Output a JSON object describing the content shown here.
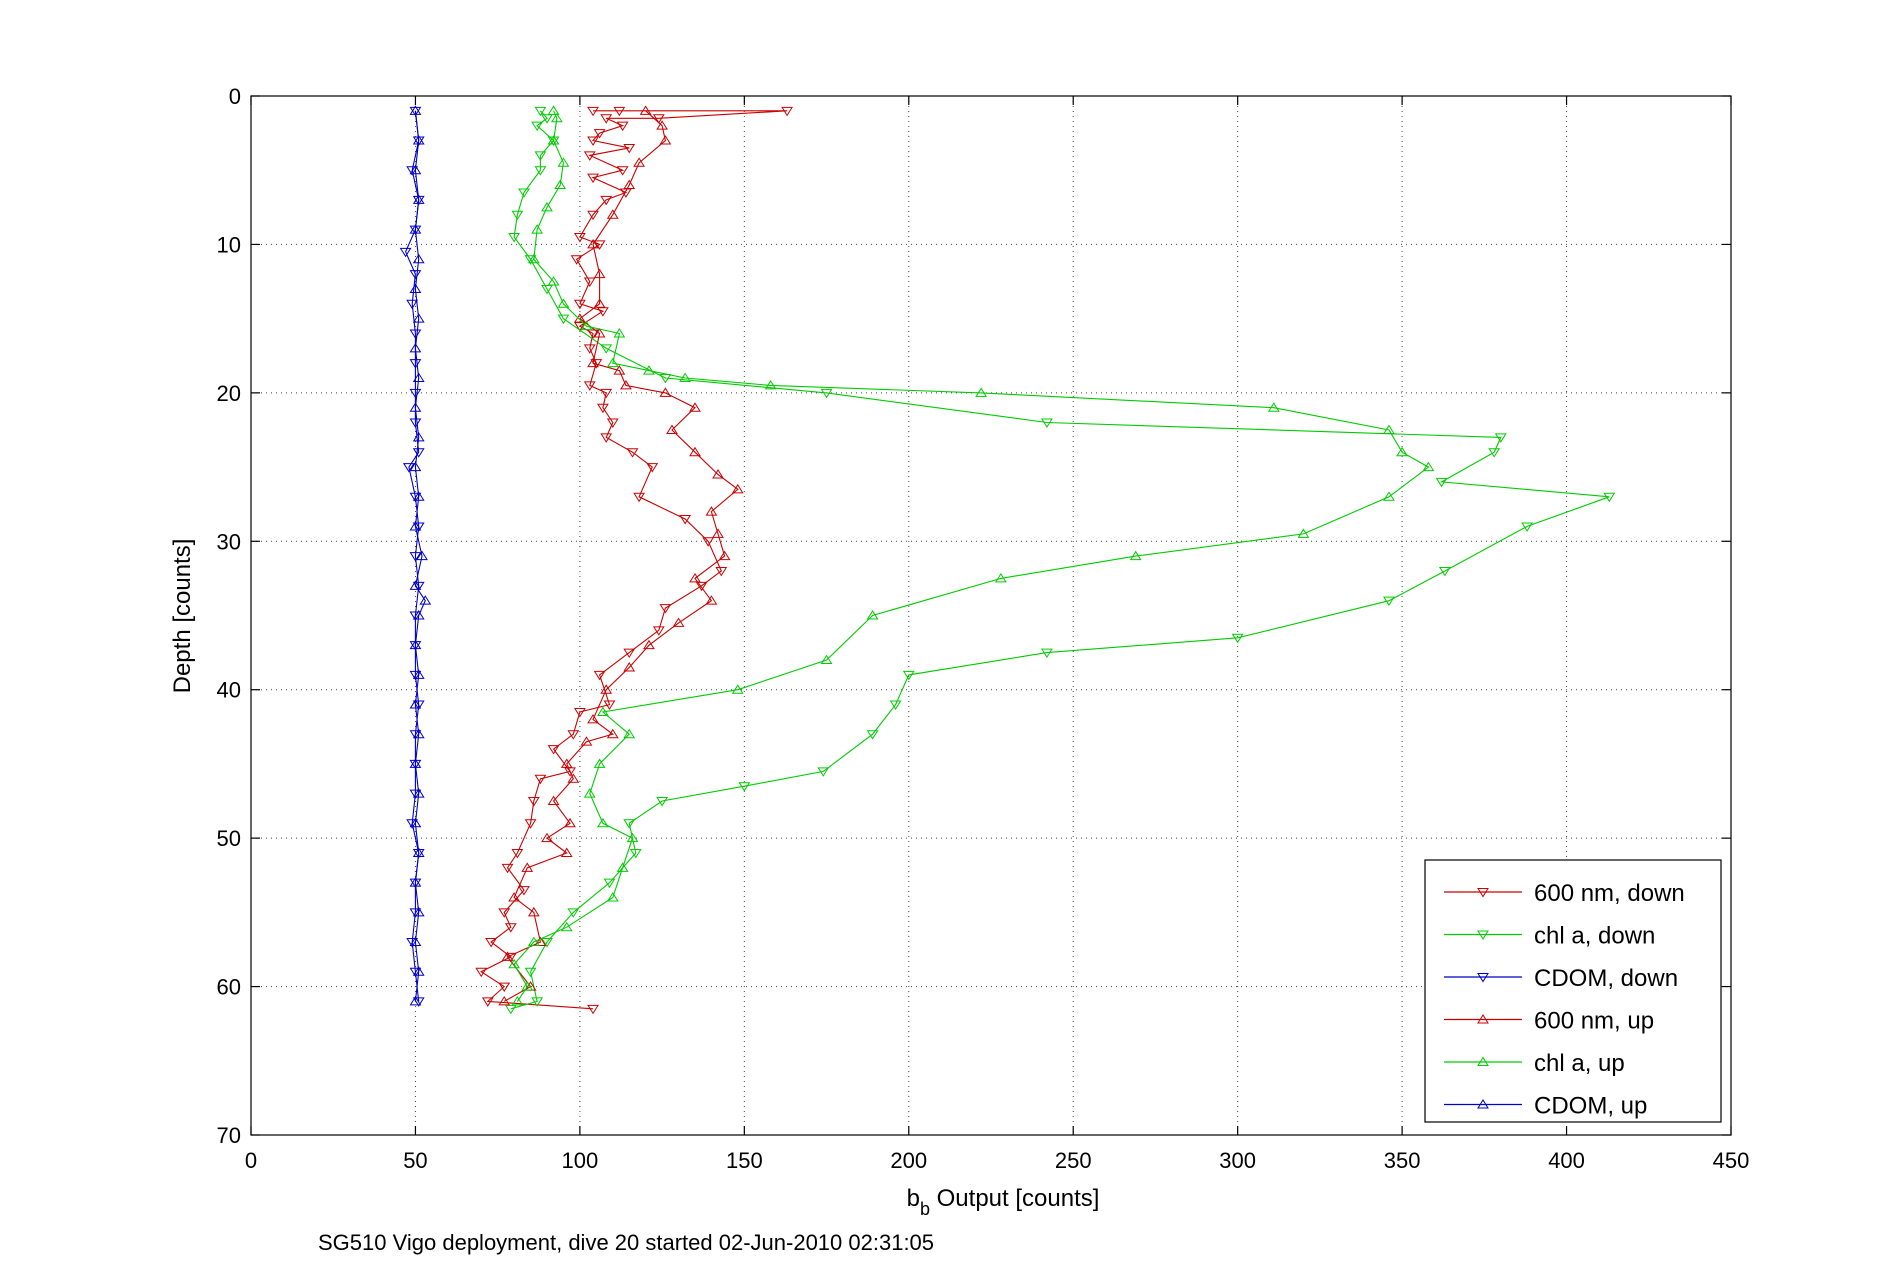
{
  "chart_data": {
    "type": "line",
    "xlabel_base": "b",
    "xlabel_sub": "b",
    "xlabel_rest": " Output [counts]",
    "ylabel": "Depth [counts]",
    "caption": "SG510 Vigo deployment, dive 20 started 02-Jun-2010 02:31:05",
    "xlim": [
      0,
      450
    ],
    "ylim": [
      0,
      70
    ],
    "y_reversed": true,
    "grid": true,
    "legend_position": "bottom-right",
    "xticks": [
      0,
      50,
      100,
      150,
      200,
      250,
      300,
      350,
      400,
      450
    ],
    "yticks": [
      0,
      10,
      20,
      30,
      40,
      50,
      60,
      70
    ],
    "series": [
      {
        "name": "600 nm, down",
        "color": "#cc0000",
        "marker": "triangle-down",
        "points": [
          [
            104,
            1
          ],
          [
            112,
            1
          ],
          [
            163,
            1
          ],
          [
            124,
            1.5
          ],
          [
            108,
            1.5
          ],
          [
            113,
            2
          ],
          [
            106,
            2.5
          ],
          [
            104,
            3
          ],
          [
            115,
            3.5
          ],
          [
            103,
            4
          ],
          [
            113,
            5
          ],
          [
            104,
            5.5
          ],
          [
            114,
            6.5
          ],
          [
            108,
            7
          ],
          [
            104,
            8
          ],
          [
            100,
            9.5
          ],
          [
            106,
            10
          ],
          [
            99,
            11
          ],
          [
            103,
            12.5
          ],
          [
            100,
            14
          ],
          [
            107,
            14.5
          ],
          [
            100,
            15.5
          ],
          [
            104,
            16
          ],
          [
            103,
            17
          ],
          [
            105,
            18
          ],
          [
            103,
            19.5
          ],
          [
            108,
            20
          ],
          [
            107,
            21
          ],
          [
            110,
            22
          ],
          [
            108,
            23
          ],
          [
            116,
            24
          ],
          [
            122,
            25
          ],
          [
            118,
            27
          ],
          [
            132,
            28.5
          ],
          [
            139,
            30
          ],
          [
            143,
            32
          ],
          [
            137,
            33
          ],
          [
            126,
            34.5
          ],
          [
            124,
            36
          ],
          [
            115,
            37.5
          ],
          [
            106,
            39
          ],
          [
            109,
            41
          ],
          [
            100,
            41.5
          ],
          [
            98,
            43
          ],
          [
            92,
            44
          ],
          [
            97,
            45.5
          ],
          [
            88,
            46
          ],
          [
            86,
            47.5
          ],
          [
            85,
            49
          ],
          [
            81,
            51
          ],
          [
            78,
            52
          ],
          [
            83,
            53.5
          ],
          [
            77,
            55
          ],
          [
            79,
            56
          ],
          [
            73,
            57
          ],
          [
            79,
            58
          ],
          [
            70,
            59
          ],
          [
            77,
            60
          ],
          [
            72,
            61
          ],
          [
            104,
            61.5
          ]
        ]
      },
      {
        "name": "chl a, down",
        "color": "#00cc00",
        "marker": "triangle-down",
        "points": [
          [
            88,
            1
          ],
          [
            90,
            1.5
          ],
          [
            87,
            2
          ],
          [
            92,
            3
          ],
          [
            88,
            4
          ],
          [
            88,
            5
          ],
          [
            83,
            6.5
          ],
          [
            81,
            8
          ],
          [
            80,
            9.5
          ],
          [
            85,
            11
          ],
          [
            90,
            13
          ],
          [
            95,
            15
          ],
          [
            108,
            17
          ],
          [
            126,
            19
          ],
          [
            175,
            20
          ],
          [
            242,
            22
          ],
          [
            380,
            23
          ],
          [
            378,
            24
          ],
          [
            362,
            26
          ],
          [
            413,
            27
          ],
          [
            388,
            29
          ],
          [
            363,
            32
          ],
          [
            346,
            34
          ],
          [
            300,
            36.5
          ],
          [
            242,
            37.5
          ],
          [
            200,
            39
          ],
          [
            196,
            41
          ],
          [
            189,
            43
          ],
          [
            174,
            45.5
          ],
          [
            150,
            46.5
          ],
          [
            125,
            47.5
          ],
          [
            115,
            49
          ],
          [
            117,
            51
          ],
          [
            109,
            53
          ],
          [
            98,
            55
          ],
          [
            90,
            57
          ],
          [
            85,
            59
          ],
          [
            87,
            61
          ],
          [
            79,
            61.5
          ]
        ]
      },
      {
        "name": "CDOM, down",
        "color": "#0000cc",
        "marker": "triangle-down",
        "points": [
          [
            50,
            1
          ],
          [
            51,
            3
          ],
          [
            49,
            5
          ],
          [
            51,
            7
          ],
          [
            50,
            9
          ],
          [
            47,
            10.5
          ],
          [
            50,
            12
          ],
          [
            49,
            14
          ],
          [
            50,
            16
          ],
          [
            50,
            18
          ],
          [
            50,
            20
          ],
          [
            50,
            22
          ],
          [
            51,
            24
          ],
          [
            48,
            25
          ],
          [
            50,
            27
          ],
          [
            51,
            29
          ],
          [
            50,
            31
          ],
          [
            51,
            33
          ],
          [
            50,
            35
          ],
          [
            50,
            37
          ],
          [
            50,
            39
          ],
          [
            51,
            41
          ],
          [
            50,
            43
          ],
          [
            50,
            45
          ],
          [
            50,
            47
          ],
          [
            49,
            49
          ],
          [
            51,
            51
          ],
          [
            50,
            53
          ],
          [
            50,
            55
          ],
          [
            49,
            57
          ],
          [
            50,
            59
          ],
          [
            51,
            61
          ]
        ]
      },
      {
        "name": "600 nm, up",
        "color": "#cc0000",
        "marker": "triangle-up",
        "points": [
          [
            77,
            61
          ],
          [
            85,
            60
          ],
          [
            78,
            58
          ],
          [
            88,
            57
          ],
          [
            86,
            55
          ],
          [
            80,
            54
          ],
          [
            84,
            52
          ],
          [
            96,
            51
          ],
          [
            90,
            50
          ],
          [
            97,
            49
          ],
          [
            92,
            47.5
          ],
          [
            98,
            46
          ],
          [
            96,
            45
          ],
          [
            102,
            43.5
          ],
          [
            110,
            43
          ],
          [
            104,
            42
          ],
          [
            108,
            40
          ],
          [
            115,
            38.5
          ],
          [
            121,
            37
          ],
          [
            130,
            35.5
          ],
          [
            140,
            34
          ],
          [
            135,
            32.5
          ],
          [
            144,
            31
          ],
          [
            142,
            29.5
          ],
          [
            140,
            28
          ],
          [
            148,
            26.5
          ],
          [
            142,
            25.5
          ],
          [
            135,
            24
          ],
          [
            128,
            22.5
          ],
          [
            135,
            21
          ],
          [
            126,
            20
          ],
          [
            114,
            19.5
          ],
          [
            112,
            18.5
          ],
          [
            104,
            18
          ],
          [
            106,
            16
          ],
          [
            100,
            15
          ],
          [
            106,
            14
          ],
          [
            106,
            12
          ],
          [
            104,
            10
          ],
          [
            110,
            8
          ],
          [
            115,
            6
          ],
          [
            118,
            4.5
          ],
          [
            126,
            3
          ],
          [
            125,
            2
          ],
          [
            120,
            1
          ]
        ]
      },
      {
        "name": "chl a, up",
        "color": "#00cc00",
        "marker": "triangle-up",
        "points": [
          [
            81,
            61
          ],
          [
            84,
            60
          ],
          [
            80,
            58.5
          ],
          [
            86,
            57
          ],
          [
            96,
            56
          ],
          [
            110,
            54
          ],
          [
            113,
            52
          ],
          [
            116,
            50
          ],
          [
            107,
            49
          ],
          [
            103,
            47
          ],
          [
            106,
            45
          ],
          [
            115,
            43
          ],
          [
            107,
            41.5
          ],
          [
            148,
            40
          ],
          [
            175,
            38
          ],
          [
            189,
            35
          ],
          [
            228,
            32.5
          ],
          [
            269,
            31
          ],
          [
            320,
            29.5
          ],
          [
            346,
            27
          ],
          [
            358,
            25
          ],
          [
            350,
            24
          ],
          [
            346,
            22.5
          ],
          [
            311,
            21
          ],
          [
            222,
            20
          ],
          [
            158,
            19.5
          ],
          [
            132,
            19
          ],
          [
            121,
            18.5
          ],
          [
            110,
            18
          ],
          [
            112,
            16
          ],
          [
            102,
            15.5
          ],
          [
            95,
            14
          ],
          [
            92,
            12.5
          ],
          [
            86,
            11
          ],
          [
            87,
            9
          ],
          [
            90,
            7.5
          ],
          [
            94,
            6
          ],
          [
            95,
            4.5
          ],
          [
            92,
            3
          ],
          [
            93,
            1.5
          ],
          [
            92,
            1
          ]
        ]
      },
      {
        "name": "CDOM, up",
        "color": "#0000cc",
        "marker": "triangle-up",
        "points": [
          [
            50,
            61
          ],
          [
            51,
            59
          ],
          [
            50,
            57
          ],
          [
            51,
            55
          ],
          [
            50,
            53
          ],
          [
            51,
            51
          ],
          [
            50,
            49
          ],
          [
            51,
            47
          ],
          [
            50,
            45
          ],
          [
            51,
            43
          ],
          [
            50,
            41
          ],
          [
            51,
            39
          ],
          [
            50,
            37
          ],
          [
            51,
            35
          ],
          [
            53,
            34
          ],
          [
            50,
            33
          ],
          [
            52,
            31
          ],
          [
            50,
            29
          ],
          [
            51,
            27
          ],
          [
            50,
            25
          ],
          [
            51,
            23
          ],
          [
            50,
            21
          ],
          [
            51,
            19
          ],
          [
            50,
            17
          ],
          [
            51,
            15
          ],
          [
            50,
            13
          ],
          [
            51,
            11
          ],
          [
            50,
            9
          ],
          [
            51,
            7
          ],
          [
            50,
            5
          ],
          [
            51,
            3
          ],
          [
            50,
            1
          ]
        ]
      }
    ]
  }
}
